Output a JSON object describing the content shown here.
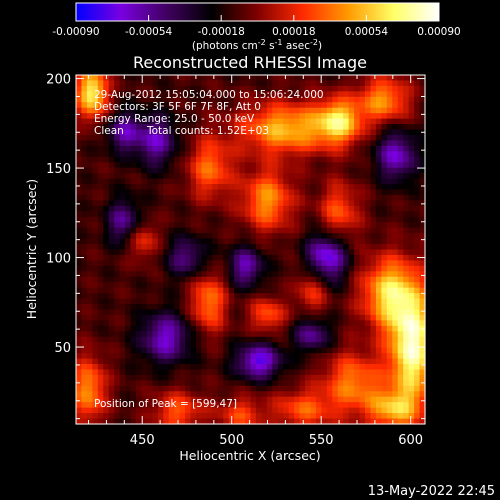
{
  "chart_data": {
    "type": "heatmap",
    "title": "Reconstructed RHESSI Image",
    "xlabel": "Heliocentric X (arcsec)",
    "ylabel": "Heliocentric Y (arcsec)",
    "xlim": [
      413,
      608
    ],
    "ylim": [
      7,
      202
    ],
    "x_ticks": [
      450,
      500,
      550,
      600
    ],
    "y_ticks": [
      50,
      100,
      150,
      200
    ],
    "colorbar": {
      "range": [
        -0.0009,
        0.0009
      ],
      "ticks": [
        "-0.00090",
        "-0.00054",
        "-0.00018",
        "0.00018",
        "0.00054",
        "0.00090"
      ],
      "unit_parts": [
        "(photons cm",
        "-2",
        " s",
        "-1",
        " asec",
        "-2",
        ")"
      ],
      "colormap": [
        "#0000ff",
        "#7a00e0",
        "#400060",
        "#000000",
        "#800000",
        "#ff2a00",
        "#ff9a00",
        "#ffff66",
        "#ffffff"
      ]
    },
    "annotations": [
      "29-Aug-2012 15:05:04.000 to 15:06:24.000",
      "Detectors: 3F 5F 6F 7F 8F, Att 0",
      "Energy Range: 25.0 - 50.0 keV",
      "Clean",
      "Total counts: 1.52E+03"
    ],
    "peak_label": "Position of Peak = [599,47]",
    "peak_position": [
      599,
      47
    ],
    "blobs": [
      {
        "x": 601,
        "y": 50,
        "sx": 9,
        "sy": 22,
        "a": 1.0
      },
      {
        "x": 588,
        "y": 80,
        "sx": 11,
        "sy": 14,
        "a": 0.75
      },
      {
        "x": 590,
        "y": 15,
        "sx": 10,
        "sy": 8,
        "a": 0.6
      },
      {
        "x": 568,
        "y": 30,
        "sx": 12,
        "sy": 12,
        "a": 0.55
      },
      {
        "x": 540,
        "y": 15,
        "sx": 12,
        "sy": 8,
        "a": 0.45
      },
      {
        "x": 505,
        "y": 12,
        "sx": 9,
        "sy": 7,
        "a": 0.4
      },
      {
        "x": 470,
        "y": 14,
        "sx": 10,
        "sy": 8,
        "a": 0.45
      },
      {
        "x": 420,
        "y": 26,
        "sx": 7,
        "sy": 13,
        "a": 0.6
      },
      {
        "x": 422,
        "y": 192,
        "sx": 6,
        "sy": 10,
        "a": 0.9
      },
      {
        "x": 530,
        "y": 172,
        "sx": 18,
        "sy": 10,
        "a": 0.7
      },
      {
        "x": 560,
        "y": 176,
        "sx": 9,
        "sy": 9,
        "a": 0.75
      },
      {
        "x": 585,
        "y": 188,
        "sx": 10,
        "sy": 9,
        "a": 0.6
      },
      {
        "x": 520,
        "y": 132,
        "sx": 10,
        "sy": 12,
        "a": 0.6
      },
      {
        "x": 560,
        "y": 125,
        "sx": 8,
        "sy": 12,
        "a": 0.45
      },
      {
        "x": 488,
        "y": 150,
        "sx": 9,
        "sy": 12,
        "a": 0.5
      },
      {
        "x": 487,
        "y": 75,
        "sx": 7,
        "sy": 12,
        "a": 0.55
      },
      {
        "x": 520,
        "y": 68,
        "sx": 7,
        "sy": 7,
        "a": 0.45
      },
      {
        "x": 450,
        "y": 110,
        "sx": 6,
        "sy": 8,
        "a": 0.4
      },
      {
        "x": 545,
        "y": 82,
        "sx": 6,
        "sy": 10,
        "a": 0.4
      },
      {
        "x": 458,
        "y": 165,
        "sx": 8,
        "sy": 10,
        "a": -0.55
      },
      {
        "x": 440,
        "y": 120,
        "sx": 7,
        "sy": 9,
        "a": -0.5
      },
      {
        "x": 463,
        "y": 55,
        "sx": 10,
        "sy": 10,
        "a": -0.6
      },
      {
        "x": 515,
        "y": 42,
        "sx": 9,
        "sy": 7,
        "a": -0.7
      },
      {
        "x": 508,
        "y": 95,
        "sx": 7,
        "sy": 8,
        "a": -0.55
      },
      {
        "x": 553,
        "y": 100,
        "sx": 8,
        "sy": 10,
        "a": -0.75
      },
      {
        "x": 592,
        "y": 157,
        "sx": 8,
        "sy": 10,
        "a": -0.6
      },
      {
        "x": 545,
        "y": 57,
        "sx": 7,
        "sy": 7,
        "a": -0.5
      },
      {
        "x": 475,
        "y": 100,
        "sx": 8,
        "sy": 8,
        "a": -0.45
      },
      {
        "x": 440,
        "y": 170,
        "sx": 7,
        "sy": 8,
        "a": -0.5
      }
    ]
  },
  "footer": {
    "timestamp": "13-May-2022 22:45"
  }
}
